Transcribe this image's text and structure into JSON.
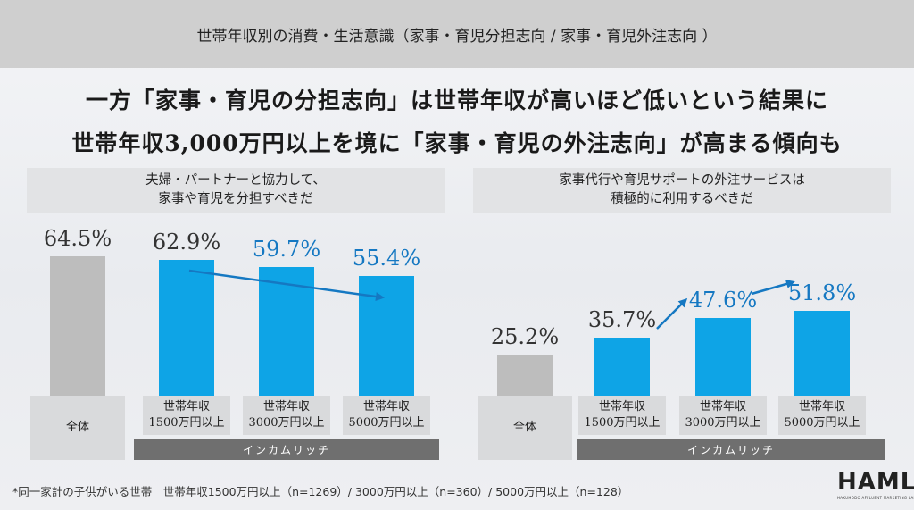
{
  "header": {
    "title": "世帯年収別の消費・生活意識（家事・育児分担志向 / 家事・育児外注志向 ）"
  },
  "headline": {
    "line1": "一方「家事・育児の分担志向」は世帯年収が高いほど低いという結果に",
    "line2": "世帯年収3,000万円以上を境に「家事・育児の外注志向」が高まる傾向も"
  },
  "chart_data": [
    {
      "type": "bar",
      "title_lines": [
        "夫婦・パートナーと協力して、",
        "家事や育児を分担すべきだ"
      ],
      "categories": [
        [
          "全体"
        ],
        [
          "世帯年収",
          "1500万円以上"
        ],
        [
          "世帯年収",
          "3000万円以上"
        ],
        [
          "世帯年収",
          "5000万円以上"
        ]
      ],
      "values": [
        64.5,
        62.9,
        59.7,
        55.4
      ],
      "value_labels": [
        "64.5%",
        "62.9%",
        "59.7%",
        "55.4%"
      ],
      "group_label": "インカムリッチ",
      "colors": [
        "#bdbdbd",
        "#0ea4e6",
        "#0ea4e6",
        "#0ea4e6"
      ],
      "ylim": [
        0,
        80
      ]
    },
    {
      "type": "bar",
      "title_lines": [
        "家事代行や育児サポートの外注サービスは",
        "積極的に利用するべきだ"
      ],
      "categories": [
        [
          "全体"
        ],
        [
          "世帯年収",
          "1500万円以上"
        ],
        [
          "世帯年収",
          "3000万円以上"
        ],
        [
          "世帯年収",
          "5000万円以上"
        ]
      ],
      "values": [
        25.2,
        35.7,
        47.6,
        51.8
      ],
      "value_labels": [
        "25.2%",
        "35.7%",
        "47.6%",
        "51.8%"
      ],
      "group_label": "インカムリッチ",
      "colors": [
        "#bdbdbd",
        "#0ea4e6",
        "#0ea4e6",
        "#0ea4e6"
      ],
      "ylim": [
        0,
        80
      ]
    }
  ],
  "footnote": "*同一家計の子供がいる世帯　世帯年収1500万円以上（n=1269）/ 3000万円以上（n=360）/ 5000万円以上（n=128）",
  "logo": {
    "main": "HAML",
    "sub": "HAKUHODO AFFLUENT MARKETING LAB"
  },
  "colors": {
    "accent_blue": "#0ea4e6",
    "label_blue": "#1578c2",
    "gray_bar": "#bdbdbd",
    "group_bar": "#6f6f6f"
  }
}
